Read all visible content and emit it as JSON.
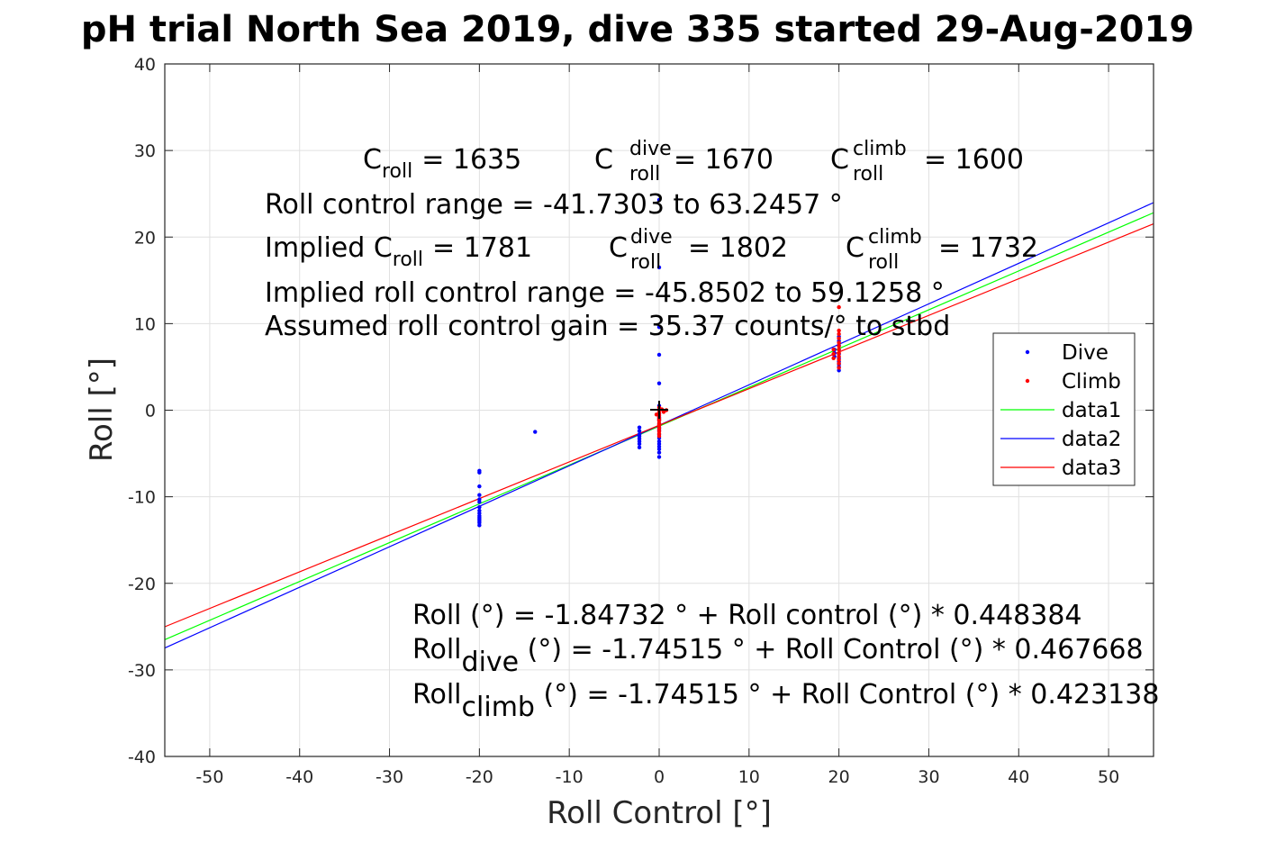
{
  "chart_data": {
    "type": "scatter",
    "title": "pH trial North Sea 2019, dive 335 started 29-Aug-2019",
    "xlabel": "Roll Control [°]",
    "ylabel": "Roll [°]",
    "xlim": [
      -55,
      55
    ],
    "ylim": [
      -40,
      40
    ],
    "xticks": [
      -50,
      -40,
      -30,
      -20,
      -10,
      0,
      10,
      20,
      30,
      40,
      50
    ],
    "yticks": [
      -40,
      -30,
      -20,
      -10,
      0,
      10,
      20,
      30,
      40
    ],
    "grid": true,
    "legend_position": "right",
    "annotations": {
      "c_roll": {
        "base": "C",
        "sub": "roll",
        "value": "= 1635"
      },
      "c_roll_dive": {
        "base": "C",
        "sup": "dive",
        "sub": "roll",
        "value": "= 1670"
      },
      "c_roll_climb": {
        "base": "C",
        "sup": "climb",
        "sub": "roll",
        "value": "= 1600"
      },
      "range": "Roll control range = -41.7303 to 63.2457 °",
      "implied_prefix": "Implied C",
      "implied_sub": "roll",
      "implied_value": "= 1781",
      "implied_dive": {
        "base": "C",
        "sup": "dive",
        "sub": "roll",
        "value": "= 1802"
      },
      "implied_climb": {
        "base": "C",
        "sup": "climb",
        "sub": "roll",
        "value": "= 1732"
      },
      "implied_range": "Implied roll control range = -45.8502 to 59.1258 °",
      "gain": "Assumed roll control gain = 35.37 counts/° to stbd",
      "eq1": "Roll (°) = -1.84732 ° + Roll control (°) * 0.448384",
      "eq2_base": "Roll",
      "eq2_sub": "dive",
      "eq2_rest": " (°) = -1.74515 ° + Roll Control (°) * 0.467668",
      "eq3_base": "Roll",
      "eq3_sub": "climb",
      "eq3_rest": " (°) = -1.74515 ° + Roll Control (°) * 0.423138"
    },
    "series": [
      {
        "name": "Dive",
        "kind": "points",
        "color": "#0000ff",
        "x": [
          -20,
          -20,
          -20,
          -20,
          -20,
          -20,
          -20,
          -20,
          -20,
          -20,
          -20,
          -20,
          -20,
          -20,
          -20,
          -13.8,
          -2.2,
          -2.2,
          -2.2,
          -2.2,
          -2.2,
          -2.2,
          -2.2,
          -2.2,
          0,
          0,
          0,
          0,
          0,
          0,
          0,
          0,
          0,
          0,
          0,
          0,
          0,
          0,
          0,
          0,
          0,
          0,
          0,
          0,
          0,
          0,
          20,
          20,
          20,
          20,
          20,
          20,
          20,
          20,
          20,
          20,
          19.5,
          19.5,
          19.5
        ],
        "y": [
          -7.0,
          -7.2,
          -8.8,
          -9.8,
          -10.6,
          -11.2,
          -11.6,
          -11.9,
          -12.2,
          -12.4,
          -12.6,
          -12.8,
          -13.0,
          -13.3,
          -10.3,
          -2.5,
          -2.0,
          -2.4,
          -2.8,
          -3.0,
          -3.3,
          -3.6,
          -3.9,
          -4.3,
          24.3,
          16.5,
          9.6,
          6.4,
          3.1,
          0.5,
          -0.4,
          -0.8,
          -1.2,
          -1.6,
          -2.0,
          -2.4,
          -2.8,
          -3.2,
          -3.6,
          -3.9,
          -4.2,
          -4.5,
          -4.9,
          -5.4,
          -1.0,
          -2.2,
          5.0,
          5.6,
          6.0,
          6.5,
          7.0,
          7.5,
          8.0,
          8.5,
          4.6,
          5.3,
          6.2,
          6.6,
          7.0
        ]
      },
      {
        "name": "Climb",
        "kind": "points",
        "color": "#ff0000",
        "x": [
          0,
          0,
          0,
          0,
          0,
          0,
          0,
          0,
          0,
          0,
          0,
          0,
          0,
          0,
          0.3,
          0.5,
          0.8,
          -0.3,
          20,
          20,
          20,
          20,
          20,
          20,
          20,
          20,
          20,
          20,
          20,
          20,
          19.4,
          19.4,
          19.4
        ],
        "y": [
          0.3,
          0.0,
          -0.3,
          -0.6,
          -0.9,
          -1.2,
          -1.5,
          -1.8,
          -2.1,
          -2.4,
          -2.7,
          -3.0,
          -1.1,
          -1.7,
          0.1,
          -0.2,
          0.0,
          -0.5,
          11.9,
          9.2,
          8.8,
          8.3,
          7.8,
          7.4,
          7.0,
          6.6,
          6.2,
          5.8,
          5.4,
          4.9,
          6.0,
          6.5,
          7.0
        ]
      },
      {
        "name": "data1",
        "kind": "line",
        "color": "#00ff00",
        "x": [
          -55,
          55
        ],
        "y": [
          -26.51,
          22.81
        ]
      },
      {
        "name": "data2",
        "kind": "line",
        "color": "#0000ff",
        "x": [
          -55,
          55
        ],
        "y": [
          -27.47,
          23.98
        ]
      },
      {
        "name": "data3",
        "kind": "line",
        "color": "#ff0000",
        "x": [
          -55,
          55
        ],
        "y": [
          -25.02,
          21.53
        ]
      }
    ]
  }
}
